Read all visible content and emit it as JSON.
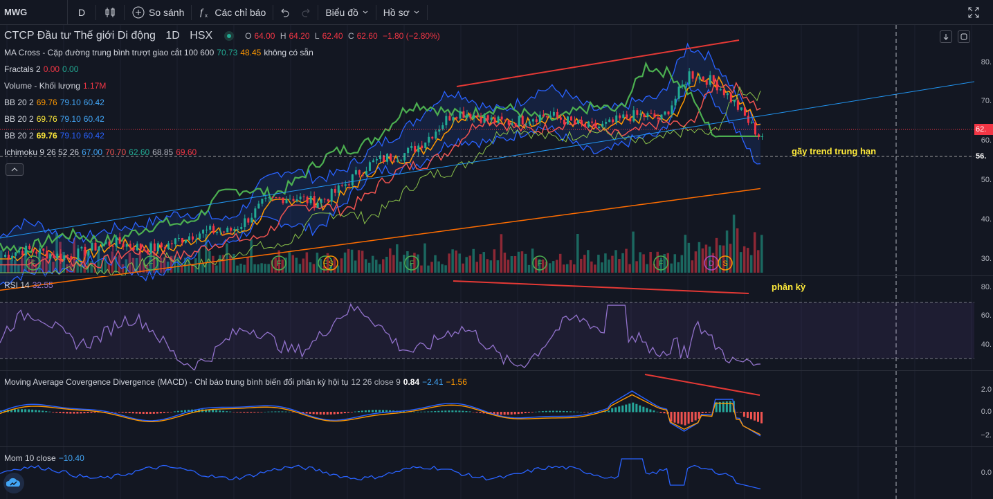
{
  "toolbar": {
    "symbol": "MWG",
    "interval": "D",
    "compare_label": "So sánh",
    "indicators_label": "Các chỉ báo",
    "chart_label": "Biểu đồ",
    "profile_label": "Hồ sơ"
  },
  "main": {
    "title": "CTCP Đầu tư Thế giới Di động",
    "interval": "1D",
    "exchange": "HSX",
    "ohlc": {
      "o_label": "O",
      "o": "64.00",
      "h_label": "H",
      "h": "64.20",
      "l_label": "L",
      "l": "62.40",
      "c_label": "C",
      "c": "62.60",
      "change": "−1.80 (−2.80%)"
    },
    "ma_cross": {
      "label": "MA Cross - Cặp đường trung bình trượt giao cắt 100 600",
      "v1": "70.73",
      "v2": "48.45",
      "note": "không có sẵn"
    },
    "fractals": {
      "label": "Fractals 2",
      "v1": "0.00",
      "v2": "0.00"
    },
    "volume": {
      "label": "Volume - Khối lượng",
      "v": "1.17M"
    },
    "bb1": {
      "label": "BB 20 2",
      "v1": "69.76",
      "v2": "79.10",
      "v3": "60.42"
    },
    "bb2": {
      "label": "BB 20 2",
      "v1": "69.76",
      "v2": "79.10",
      "v3": "60.42"
    },
    "bb3": {
      "label": "BB 20 2",
      "v1": "69.76",
      "v2": "79.10",
      "v3": "60.42"
    },
    "ichimoku": {
      "label": "Ichimoku 9 26 52 26",
      "v1": "67.00",
      "v2": "70.70",
      "v3": "62.60",
      "v4": "68.85",
      "v5": "69.60"
    },
    "price_tag": "62.",
    "level_tag": "56.",
    "annotation": "gãy trend trung hạn",
    "axis": [
      "80.",
      "70.",
      "60.",
      "50.",
      "40.",
      "30."
    ],
    "markers": [
      "F",
      "F",
      "F",
      "F",
      "S",
      "F",
      "F",
      "F",
      "D",
      "S"
    ]
  },
  "rsi": {
    "label": "RSI 14",
    "value": "32.55",
    "annotation": "phân kỳ",
    "axis": [
      "80.",
      "60.",
      "40."
    ]
  },
  "macd": {
    "label": "Moving Average Covergence Divergence (MACD) - Chỉ báo trung bình biến đổi phân kỳ hội tụ",
    "params": "12 26 close 9",
    "v1": "0.84",
    "v2": "−2.41",
    "v3": "−1.56",
    "axis": [
      "2.0",
      "0.0",
      "−2."
    ]
  },
  "mom": {
    "label": "Mom 10 close",
    "value": "−10.40",
    "axis": [
      "0.0"
    ]
  },
  "colors": {
    "up": "#22ab94",
    "down": "#f23645",
    "ma100": "#4caf50",
    "ma600": "#ff9800",
    "bb": "#2962ff",
    "rsi": "#9575cd",
    "trend": "#2196f3",
    "annotation_line": "#e53935"
  }
}
